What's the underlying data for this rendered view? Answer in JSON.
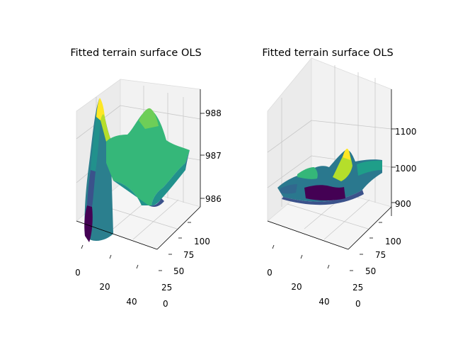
{
  "chart_data": [
    {
      "type": "surface",
      "title": "Fitted terrain surface OLS",
      "colormap": "viridis",
      "x_ticks": [
        "0",
        "20",
        "40"
      ],
      "y_ticks": [
        "25",
        "50",
        "75",
        "100"
      ],
      "y_extra_ticks": [
        "0"
      ],
      "z_ticks": [
        "986",
        "987",
        "988"
      ],
      "xlim": [
        0,
        50
      ],
      "ylim": [
        0,
        110
      ],
      "zlim": [
        985.7,
        988.6
      ],
      "grid": true
    },
    {
      "type": "surface",
      "title": "Fitted terrain surface OLS",
      "colormap": "viridis",
      "x_ticks": [
        "0",
        "20",
        "40"
      ],
      "y_ticks": [
        "25",
        "50",
        "75",
        "100"
      ],
      "y_extra_ticks": [
        "0"
      ],
      "z_ticks": [
        "900",
        "1000",
        "1100"
      ],
      "xlim": [
        0,
        50
      ],
      "ylim": [
        0,
        110
      ],
      "zlim": [
        870,
        1190
      ],
      "grid": true
    }
  ]
}
